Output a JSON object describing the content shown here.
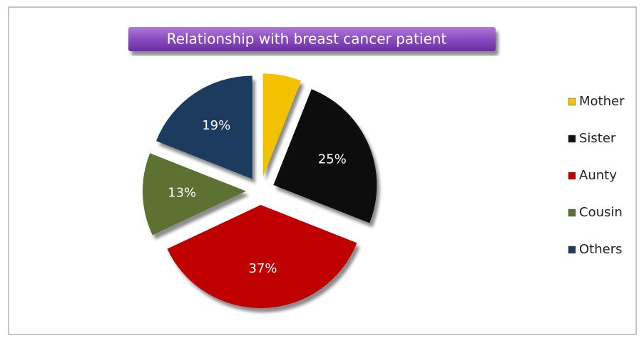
{
  "chart_data": {
    "type": "pie",
    "title": "Relationship with  breast cancer patient",
    "categories": [
      "Mother",
      "Sister",
      "Aunty",
      "Cousin",
      "Others"
    ],
    "values": [
      6,
      25,
      37,
      13,
      19
    ],
    "value_labels": [
      null,
      "25%",
      "37%",
      "13%",
      "19%"
    ],
    "colors": [
      "#f2c200",
      "#111111",
      "#c00000",
      "#5b7131",
      "#1f3a5f"
    ],
    "legend": "right"
  }
}
